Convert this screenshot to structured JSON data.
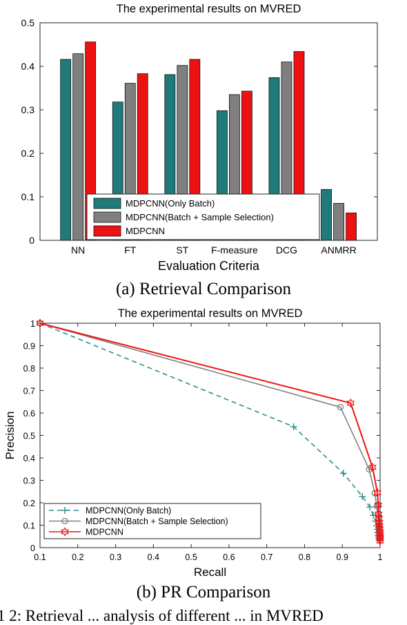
{
  "chart_data": [
    {
      "type": "bar",
      "title": "The experimental results on MVRED",
      "xlabel": "Evaluation Criteria",
      "ylabel": "",
      "ylim": [
        0,
        0.5
      ],
      "yticks": [
        "0",
        "0.1",
        "0.2",
        "0.3",
        "0.4",
        "0.5"
      ],
      "categories": [
        "NN",
        "FT",
        "ST",
        "F-measure",
        "DCG",
        "ANMRR"
      ],
      "series": [
        {
          "name": "MDPCNN(Only Batch)",
          "color": "#1f7a7a",
          "values": [
            0.416,
            0.318,
            0.381,
            0.298,
            0.374,
            0.117
          ]
        },
        {
          "name": "MDPCNN(Batch + Sample Selection)",
          "color": "#7f7f7f",
          "values": [
            0.429,
            0.361,
            0.402,
            0.335,
            0.41,
            0.085
          ]
        },
        {
          "name": "MDPCNN",
          "color": "#ee1111",
          "values": [
            0.456,
            0.383,
            0.416,
            0.343,
            0.434,
            0.063
          ]
        }
      ],
      "legend_position": "bottom-center",
      "grid": false,
      "caption": "(a) Retrieval Comparison"
    },
    {
      "type": "line",
      "title": "The experimental results on MVRED",
      "xlabel": "Recall",
      "ylabel": "Precision",
      "xlim": [
        0.1,
        1.0
      ],
      "ylim": [
        0,
        1.0
      ],
      "xticks": [
        "0.1",
        "0.2",
        "0.3",
        "0.4",
        "0.5",
        "0.6",
        "0.7",
        "0.8",
        "0.9",
        "1"
      ],
      "yticks": [
        "0",
        "0.1",
        "0.2",
        "0.3",
        "0.4",
        "0.5",
        "0.6",
        "0.7",
        "0.8",
        "0.9",
        "1"
      ],
      "series": [
        {
          "name": "MDPCNN(Only Batch)",
          "color": "#2e8b8b",
          "style": "dashed",
          "marker": "plus",
          "x": [
            0.1,
            0.771,
            0.903,
            0.953,
            0.973,
            0.982,
            0.988,
            0.991,
            0.993,
            0.994,
            0.995,
            0.996,
            0.997
          ],
          "y": [
            1.0,
            0.539,
            0.331,
            0.228,
            0.181,
            0.144,
            0.118,
            0.097,
            0.082,
            0.067,
            0.055,
            0.045,
            0.035
          ]
        },
        {
          "name": "MDPCNN(Batch + Sample Selection)",
          "color": "#808080",
          "style": "solid",
          "marker": "circle",
          "x": [
            0.1,
            0.895,
            0.971,
            0.986,
            0.991,
            0.994,
            0.995,
            0.996,
            0.997,
            0.998
          ],
          "y": [
            1.0,
            0.626,
            0.349,
            0.243,
            0.185,
            0.149,
            0.118,
            0.093,
            0.073,
            0.055
          ]
        },
        {
          "name": "MDPCNN",
          "color": "#ee1111",
          "style": "solid",
          "marker": "hexagram",
          "x": [
            0.1,
            0.922,
            0.98,
            0.993,
            0.995,
            0.996,
            0.997,
            0.998,
            0.998,
            0.999,
            0.999,
            1.0,
            1.0,
            1.0,
            1.0
          ],
          "y": [
            1.0,
            0.644,
            0.358,
            0.244,
            0.19,
            0.15,
            0.13,
            0.112,
            0.098,
            0.085,
            0.073,
            0.062,
            0.05,
            0.04,
            0.03
          ]
        }
      ],
      "legend_position": "bottom-left",
      "grid": false,
      "caption": "(b) PR Comparison"
    }
  ],
  "figure_caption": "1 2: Retrieval ... analysis of different ... in MVRED"
}
